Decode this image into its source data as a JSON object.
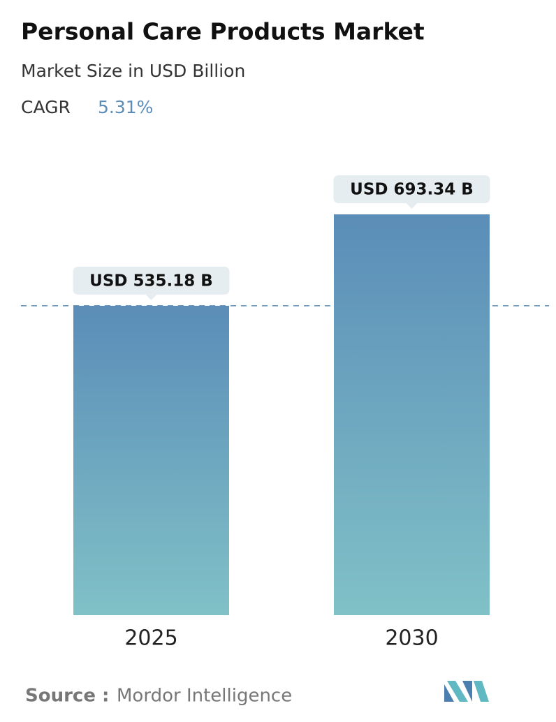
{
  "chart_data": {
    "type": "bar",
    "title": "Personal Care Products Market",
    "subtitle": "Market Size in USD Billion",
    "cagr_label": "CAGR",
    "cagr": "5.31%",
    "categories": [
      "2025",
      "2030"
    ],
    "values": [
      535.18,
      693.34
    ],
    "value_labels": [
      "USD 535.18 B",
      "USD 693.34 B"
    ],
    "color": [
      "#5b8db8",
      "#80c1c7"
    ],
    "source_label": "Source :",
    "source": "Mordor Intelligence"
  }
}
